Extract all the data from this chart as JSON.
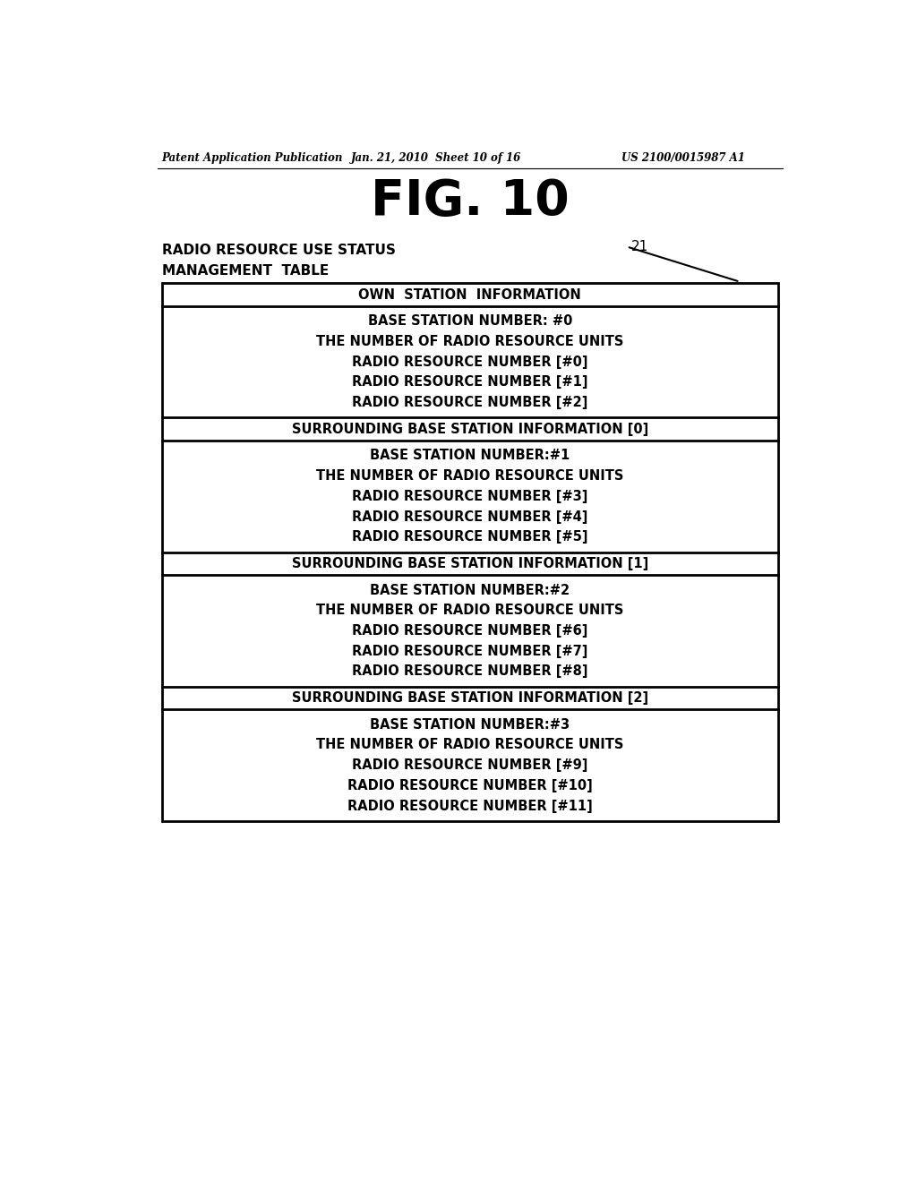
{
  "fig_title": "FIG. 10",
  "header_line1": "Patent Application Publication",
  "header_line2": "Jan. 21, 2010  Sheet 10 of 16",
  "header_line3": "US 2100/0015987 A1",
  "table_label_line1": "RADIO RESOURCE USE STATUS",
  "table_label_line2": "MANAGEMENT  TABLE",
  "table_ref": "21",
  "background": "#ffffff",
  "sections": [
    {
      "type": "header",
      "text": "OWN  STATION  INFORMATION"
    },
    {
      "type": "body",
      "lines": [
        "BASE STATION NUMBER: #0",
        "THE NUMBER OF RADIO RESOURCE UNITS",
        "RADIO RESOURCE NUMBER [#0]",
        "RADIO RESOURCE NUMBER [#1]",
        "RADIO RESOURCE NUMBER [#2]"
      ]
    },
    {
      "type": "header",
      "text": "SURROUNDING BASE STATION INFORMATION [0]"
    },
    {
      "type": "body",
      "lines": [
        "BASE STATION NUMBER:#1",
        "THE NUMBER OF RADIO RESOURCE UNITS",
        "RADIO RESOURCE NUMBER [#3]",
        "RADIO RESOURCE NUMBER [#4]",
        "RADIO RESOURCE NUMBER [#5]"
      ]
    },
    {
      "type": "header",
      "text": "SURROUNDING BASE STATION INFORMATION [1]"
    },
    {
      "type": "body",
      "lines": [
        "BASE STATION NUMBER:#2",
        "THE NUMBER OF RADIO RESOURCE UNITS",
        "RADIO RESOURCE NUMBER [#6]",
        "RADIO RESOURCE NUMBER [#7]",
        "RADIO RESOURCE NUMBER [#8]"
      ]
    },
    {
      "type": "header",
      "text": "SURROUNDING BASE STATION INFORMATION [2]"
    },
    {
      "type": "body",
      "lines": [
        "BASE STATION NUMBER:#3",
        "THE NUMBER OF RADIO RESOURCE UNITS",
        "RADIO RESOURCE NUMBER [#9]",
        "RADIO RESOURCE NUMBER [#10]",
        "RADIO RESOURCE NUMBER [#11]"
      ]
    }
  ]
}
